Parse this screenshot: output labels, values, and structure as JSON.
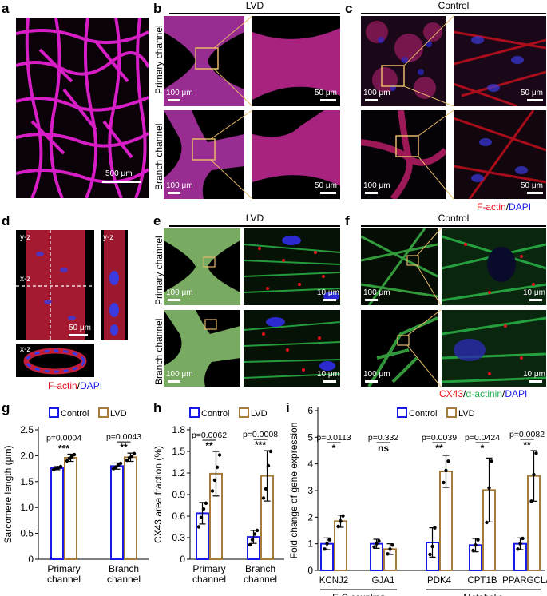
{
  "panels": {
    "a": "a",
    "b": "b",
    "c": "c",
    "d": "d",
    "e": "e",
    "f": "f",
    "g": "g",
    "h": "h",
    "i": "i"
  },
  "groups": {
    "lvd": "LVD",
    "control": "Control"
  },
  "rows": {
    "primary": "Primary channel",
    "branch": "Branch channel"
  },
  "scales": {
    "s500": "500 μm",
    "s100": "100 μm",
    "s50": "50 μm",
    "s10": "10 μm"
  },
  "d_labels": {
    "yz": "y-z",
    "xz": "x-z"
  },
  "legends": {
    "factin": "F-actin",
    "slash": "/",
    "dapi": "DAPI",
    "cx43": "CX43",
    "actinin": "α-actinin"
  },
  "colors": {
    "control": "#1a1ae6",
    "lvd": "#a67c3c",
    "factin": "#e8101e",
    "dapi": "#1a1ae6",
    "cx43": "#e8101e",
    "actinin": "#22b14c",
    "scope_line": "#e6b86a"
  },
  "chart_data": [
    {
      "type": "bar",
      "panel": "g",
      "ylabel": "Sarcomere length (μm)",
      "ylim": [
        0,
        2.5
      ],
      "yticks": [
        "0",
        "0.5",
        "1.0",
        "1.5",
        "2.0",
        "2.5"
      ],
      "categories": [
        "Primary channel",
        "Branch channel"
      ],
      "series": [
        {
          "name": "Control",
          "values": [
            1.76,
            1.8
          ],
          "err": [
            0.03,
            0.06
          ],
          "points": [
            [
              1.73,
              1.75,
              1.77,
              1.79
            ],
            [
              1.75,
              1.78,
              1.82,
              1.85
            ]
          ]
        },
        {
          "name": "LVD",
          "values": [
            1.96,
            1.97
          ],
          "err": [
            0.07,
            0.08
          ],
          "points": [
            [
              1.9,
              1.95,
              1.98,
              2.02
            ],
            [
              1.91,
              1.96,
              1.99,
              2.04
            ]
          ]
        }
      ],
      "annotations": [
        {
          "p": "p=0.0004",
          "stars": "***"
        },
        {
          "p": "p=0.0043",
          "stars": "**"
        }
      ]
    },
    {
      "type": "bar",
      "panel": "h",
      "ylabel": "CX43 area fraction (%)",
      "ylim": [
        0,
        1.8
      ],
      "yticks": [
        "0",
        "0.3",
        "0.6",
        "0.9",
        "1.2",
        "1.5",
        "1.8"
      ],
      "categories": [
        "Primary channel",
        "Branch channel"
      ],
      "series": [
        {
          "name": "Control",
          "values": [
            0.64,
            0.31
          ],
          "err": [
            0.15,
            0.09
          ],
          "points": [
            [
              0.45,
              0.58,
              0.7,
              0.78
            ],
            [
              0.2,
              0.27,
              0.35,
              0.4
            ]
          ]
        },
        {
          "name": "LVD",
          "values": [
            1.19,
            1.16
          ],
          "err": [
            0.31,
            0.35
          ],
          "points": [
            [
              0.95,
              1.1,
              1.28,
              1.45
            ],
            [
              0.85,
              0.98,
              1.3,
              1.5
            ]
          ]
        }
      ],
      "annotations": [
        {
          "p": "p=0.0062",
          "stars": "**"
        },
        {
          "p": "p=0.0008",
          "stars": "***"
        }
      ]
    },
    {
      "type": "bar",
      "panel": "i",
      "ylabel": "Fold change of gene expression",
      "ylim": [
        0,
        6
      ],
      "yticks": [
        "0",
        "1",
        "2",
        "3",
        "4",
        "5",
        "6"
      ],
      "categories": [
        "KCNJ2",
        "GJA1",
        "PDK4",
        "CPT1B",
        "PPARGCLA"
      ],
      "category_groups": [
        {
          "label": "E-C coupling",
          "members": [
            "KCNJ2",
            "GJA1"
          ]
        },
        {
          "label": "Metabolic",
          "members": [
            "PDK4",
            "CPT1B",
            "PPARGCLA"
          ]
        }
      ],
      "series": [
        {
          "name": "Control",
          "values": [
            1.0,
            1.0,
            1.05,
            0.95,
            1.0
          ],
          "err": [
            0.22,
            0.17,
            0.55,
            0.25,
            0.22
          ],
          "points": [
            [
              0.8,
              1.0,
              1.15
            ],
            [
              0.88,
              1.0,
              1.1
            ],
            [
              0.6,
              0.9,
              1.6
            ],
            [
              0.75,
              0.95,
              1.15
            ],
            [
              0.8,
              1.0,
              1.2
            ]
          ]
        },
        {
          "name": "LVD",
          "values": [
            1.85,
            0.8,
            3.72,
            3.02,
            3.55
          ],
          "err": [
            0.23,
            0.2,
            0.6,
            1.2,
            0.95
          ],
          "points": [
            [
              1.65,
              1.85,
              2.05
            ],
            [
              0.62,
              0.8,
              0.95
            ],
            [
              3.3,
              3.75,
              4.1
            ],
            [
              1.8,
              3.1,
              4.1
            ],
            [
              2.6,
              3.6,
              4.4
            ]
          ]
        }
      ],
      "annotations": [
        {
          "p": "p=0.0113",
          "stars": "*"
        },
        {
          "p": "p=0.332",
          "stars": "ns"
        },
        {
          "p": "p=0.0039",
          "stars": "**"
        },
        {
          "p": "p=0.0424",
          "stars": "*"
        },
        {
          "p": "p=0.0082",
          "stars": "**"
        }
      ]
    }
  ]
}
